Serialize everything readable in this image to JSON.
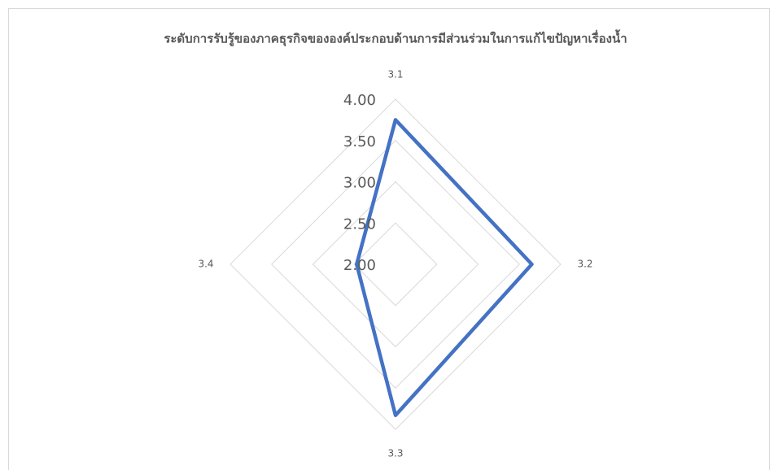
{
  "chart_data": {
    "type": "radar",
    "title": "ระดับการรับรู้ของภาคธุรกิจขององค์ประกอบด้านการมีส่วนร่วมในการแก้ไขปัญหาเรื่องน้ำ",
    "categories": [
      "3.1",
      "3.2",
      "3.3",
      "3.4"
    ],
    "series": [
      {
        "name": "ระดับการรับรู้",
        "color": "#4472c4",
        "values": [
          3.75,
          3.65,
          3.83,
          2.47
        ]
      }
    ],
    "ylim": [
      2,
      4
    ],
    "yticks": [
      {
        "value": 2,
        "label": "2.00"
      },
      {
        "value": 2.5,
        "label": "2.50"
      },
      {
        "value": 3,
        "label": "3.00"
      },
      {
        "value": 3.5,
        "label": "3.50"
      },
      {
        "value": 4,
        "label": "4.00"
      }
    ],
    "grid": true
  }
}
